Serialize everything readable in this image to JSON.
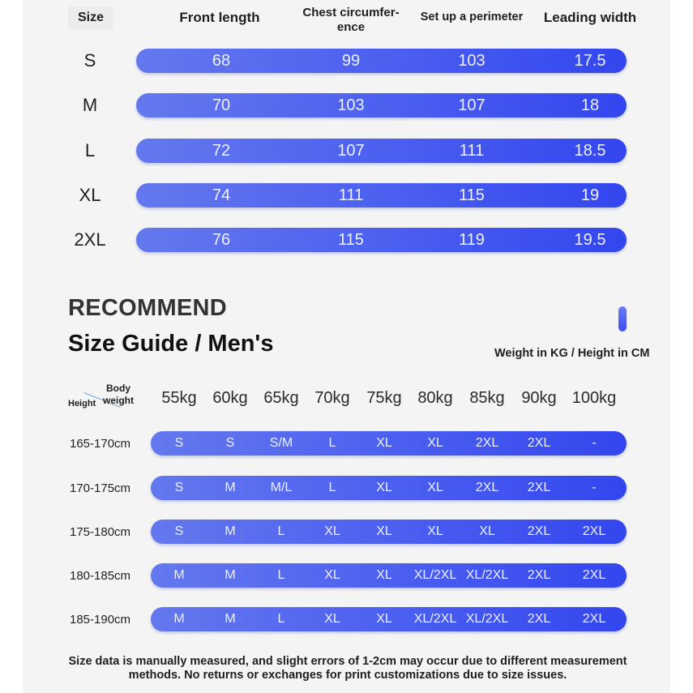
{
  "size_chart": {
    "size_header": "Size",
    "columns": [
      "Front length",
      "Chest circumfer-\nence",
      "Set up a perimeter",
      "Leading width"
    ],
    "rows": [
      {
        "size": "S",
        "values": [
          "68",
          "99",
          "103",
          "17.5"
        ]
      },
      {
        "size": "M",
        "values": [
          "70",
          "103",
          "107",
          "18"
        ]
      },
      {
        "size": "L",
        "values": [
          "72",
          "107",
          "111",
          "18.5"
        ]
      },
      {
        "size": "XL",
        "values": [
          "74",
          "111",
          "115",
          "19"
        ]
      },
      {
        "size": "2XL",
        "values": [
          "76",
          "115",
          "119",
          "19.5"
        ]
      }
    ]
  },
  "recommend": {
    "heading": "RECOMMEND",
    "title": "Size Guide / Men's",
    "units_note": "Weight in KG / Height in CM",
    "corner_height": "Height",
    "corner_weight": "Body weight",
    "weights": [
      "55kg",
      "60kg",
      "65kg",
      "70kg",
      "75kg",
      "80kg",
      "85kg",
      "90kg",
      "100kg"
    ],
    "rows": [
      {
        "height": "165-170cm",
        "sizes": [
          "S",
          "S",
          "S/M",
          "L",
          "XL",
          "XL",
          "2XL",
          "2XL",
          "-"
        ]
      },
      {
        "height": "170-175cm",
        "sizes": [
          "S",
          "M",
          "M/L",
          "L",
          "XL",
          "XL",
          "2XL",
          "2XL",
          "-"
        ]
      },
      {
        "height": "175-180cm",
        "sizes": [
          "S",
          "M",
          "L",
          "XL",
          "XL",
          "XL",
          "XL",
          "2XL",
          "2XL"
        ]
      },
      {
        "height": "180-185cm",
        "sizes": [
          "M",
          "M",
          "L",
          "XL",
          "XL",
          "XL/2XL",
          "XL/2XL",
          "2XL",
          "2XL"
        ]
      },
      {
        "height": "185-190cm",
        "sizes": [
          "M",
          "M",
          "L",
          "XL",
          "XL",
          "XL/2XL",
          "XL/2XL",
          "2XL",
          "2XL"
        ]
      }
    ]
  },
  "footer_note": {
    "line1": "Size data is manually measured, and slight errors of 1-2cm may occur due to different measurement",
    "line2": "methods. No returns or exchanges for print customizations due to size issues."
  },
  "colors": {
    "bar_start": "#6478ee",
    "bar_end": "#3346ee",
    "panel_background": "#f4f4f5"
  }
}
